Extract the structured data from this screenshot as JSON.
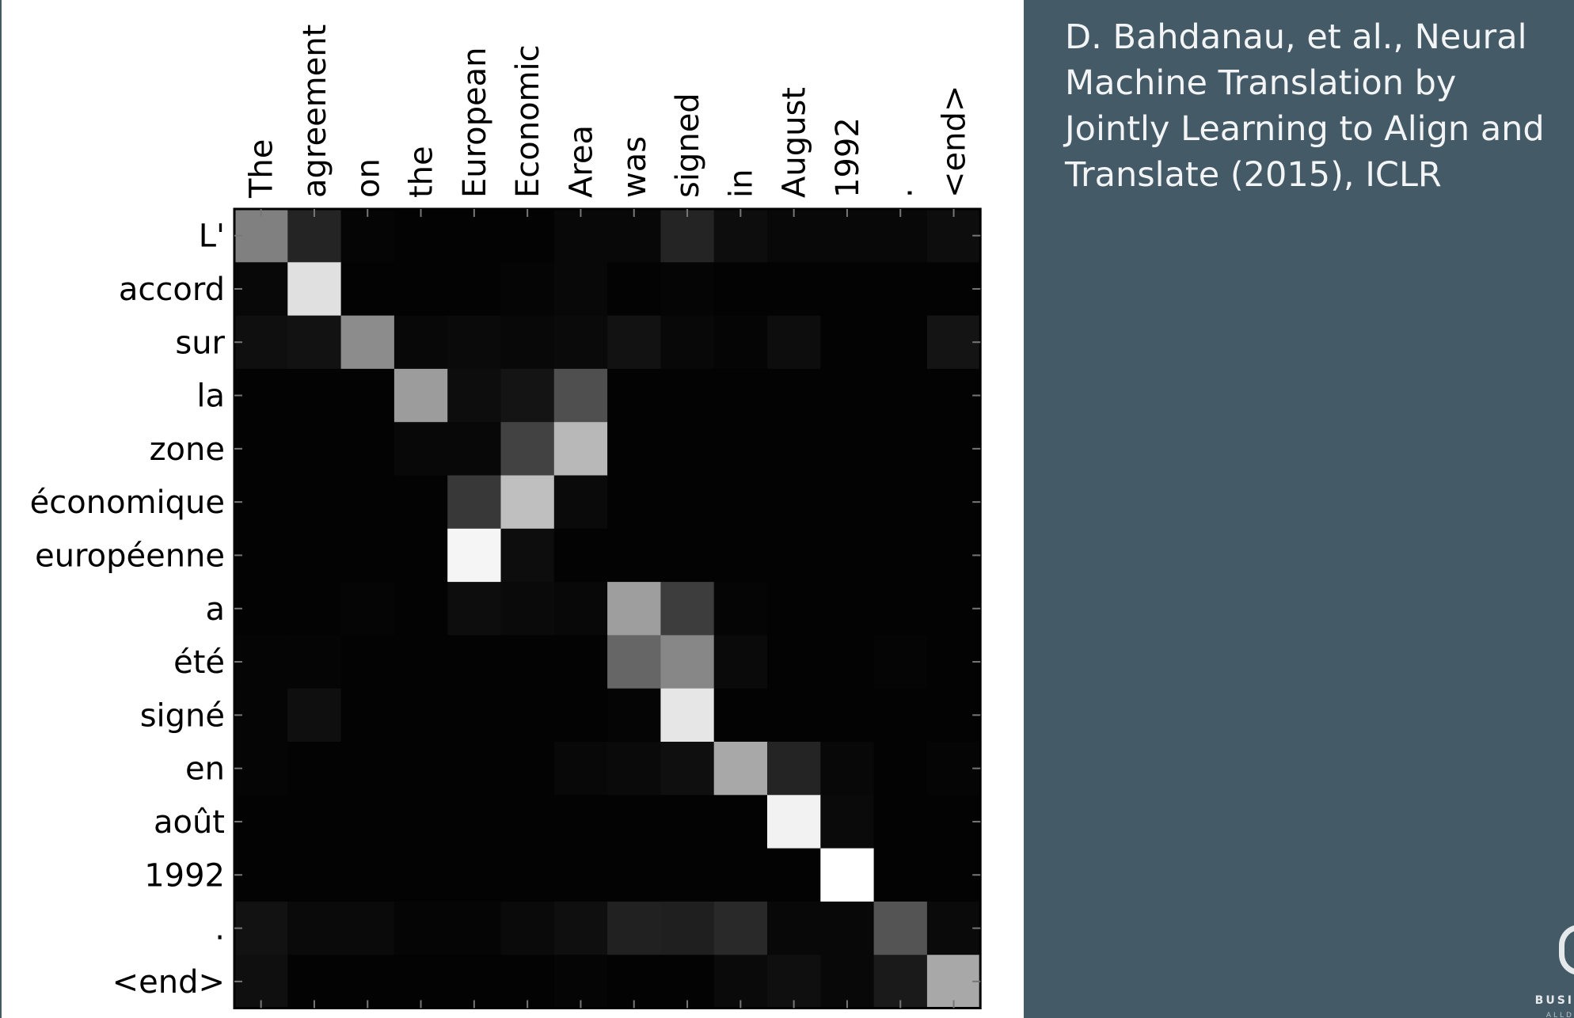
{
  "chart_data": {
    "type": "heatmap",
    "colormap": "grayscale (black = 0, white = 1)",
    "x_tokens": [
      "The",
      "agreement",
      "on",
      "the",
      "European",
      "Economic",
      "Area",
      "was",
      "signed",
      "in",
      "August",
      "1992",
      ".",
      "<end>"
    ],
    "y_tokens": [
      "L'",
      "accord",
      "sur",
      "la",
      "zone",
      "économique",
      "européenne",
      "a",
      "été",
      "signé",
      "en",
      "août",
      "1992",
      ".",
      "<end>"
    ],
    "matrix": [
      [
        0.5,
        0.14,
        0.02,
        0.01,
        0.01,
        0.01,
        0.03,
        0.03,
        0.14,
        0.05,
        0.03,
        0.03,
        0.03,
        0.05
      ],
      [
        0.03,
        0.88,
        0.01,
        0.01,
        0.01,
        0.02,
        0.03,
        0.01,
        0.02,
        0.01,
        0.01,
        0.01,
        0.01,
        0.01
      ],
      [
        0.06,
        0.07,
        0.55,
        0.03,
        0.04,
        0.03,
        0.04,
        0.07,
        0.03,
        0.02,
        0.05,
        0.01,
        0.01,
        0.08
      ],
      [
        0.01,
        0.01,
        0.01,
        0.61,
        0.05,
        0.08,
        0.31,
        0.01,
        0.01,
        0.01,
        0.01,
        0.01,
        0.01,
        0.01
      ],
      [
        0.01,
        0.01,
        0.01,
        0.03,
        0.03,
        0.26,
        0.72,
        0.01,
        0.01,
        0.01,
        0.01,
        0.01,
        0.01,
        0.01
      ],
      [
        0.01,
        0.01,
        0.01,
        0.01,
        0.22,
        0.75,
        0.04,
        0.01,
        0.01,
        0.01,
        0.01,
        0.01,
        0.01,
        0.01
      ],
      [
        0.01,
        0.01,
        0.01,
        0.01,
        0.96,
        0.05,
        0.01,
        0.01,
        0.01,
        0.01,
        0.01,
        0.01,
        0.01,
        0.01
      ],
      [
        0.01,
        0.01,
        0.02,
        0.01,
        0.05,
        0.04,
        0.03,
        0.62,
        0.24,
        0.02,
        0.01,
        0.01,
        0.01,
        0.01
      ],
      [
        0.02,
        0.02,
        0.01,
        0.01,
        0.01,
        0.01,
        0.01,
        0.4,
        0.53,
        0.04,
        0.01,
        0.01,
        0.02,
        0.01
      ],
      [
        0.02,
        0.06,
        0.01,
        0.01,
        0.01,
        0.01,
        0.01,
        0.02,
        0.9,
        0.01,
        0.01,
        0.01,
        0.01,
        0.01
      ],
      [
        0.02,
        0.01,
        0.01,
        0.01,
        0.01,
        0.01,
        0.03,
        0.04,
        0.06,
        0.66,
        0.14,
        0.03,
        0.01,
        0.02
      ],
      [
        0.01,
        0.01,
        0.01,
        0.01,
        0.01,
        0.01,
        0.01,
        0.01,
        0.01,
        0.01,
        0.95,
        0.04,
        0.01,
        0.01
      ],
      [
        0.01,
        0.01,
        0.01,
        0.01,
        0.01,
        0.01,
        0.01,
        0.01,
        0.01,
        0.01,
        0.01,
        1.0,
        0.01,
        0.01
      ],
      [
        0.07,
        0.04,
        0.04,
        0.02,
        0.02,
        0.04,
        0.06,
        0.13,
        0.12,
        0.16,
        0.03,
        0.03,
        0.33,
        0.04
      ],
      [
        0.06,
        0.01,
        0.01,
        0.01,
        0.01,
        0.01,
        0.02,
        0.01,
        0.01,
        0.04,
        0.06,
        0.03,
        0.1,
        0.66
      ]
    ]
  },
  "citation": {
    "text": "D. Bahdanau, et al., Neural Machine Translation by Jointly Learning to Align and Translate (2015), ICLR"
  },
  "branding": {
    "logo_icon": "partial-logo-mark-icon",
    "text": "BUSI",
    "subtext": "ALLD"
  }
}
